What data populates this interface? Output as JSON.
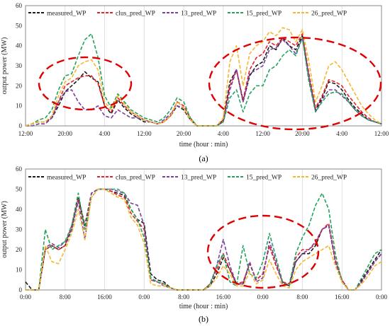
{
  "colors": {
    "measured_WP": "#1a1a1a",
    "clus_pred_WP": "#e8202a",
    "13_pred_WP": "#7b3fa0",
    "15_pred_WP": "#23a35a",
    "26_pred_WP": "#f5b82e",
    "ellipse": "#e00000"
  },
  "chart_data": [
    {
      "type": "line",
      "panel_label": "(a)",
      "xlabel": "time (hour : min)",
      "ylabel": "output power (MW)",
      "ylim": [
        0,
        60
      ],
      "yticks": [
        "0",
        "10",
        "20",
        "30",
        "40",
        "50",
        "60"
      ],
      "xticks": [
        "12:00",
        "20:00",
        "4:00",
        "12:00",
        "20:00",
        "4:00",
        "12:00",
        "20:00",
        "4:00",
        "12:00"
      ],
      "grid": "vertical gridlines",
      "legend": "top, inside",
      "x": [
        0,
        2,
        4,
        6,
        8,
        10,
        12,
        14,
        16,
        18,
        20,
        22,
        24,
        26,
        28,
        30,
        32,
        34,
        36,
        38,
        40,
        42,
        44,
        46,
        48,
        50,
        52,
        54,
        56,
        58,
        60,
        62,
        64,
        66,
        68,
        70,
        72,
        74,
        76,
        78,
        80,
        82,
        84,
        86,
        88,
        90,
        92,
        94,
        96,
        98,
        100,
        102,
        104,
        106,
        108
      ],
      "series": [
        {
          "name": "measured_WP",
          "values": [
            0,
            1,
            2,
            2,
            4,
            10,
            17,
            20,
            23,
            27,
            24,
            22,
            10,
            6,
            13,
            9,
            6,
            4,
            2,
            2,
            1,
            2,
            5,
            10,
            8,
            3,
            0,
            0,
            0,
            0,
            3,
            22,
            28,
            12,
            25,
            30,
            32,
            40,
            38,
            44,
            40,
            38,
            45,
            24,
            8,
            14,
            22,
            21,
            18,
            13,
            9,
            6,
            3,
            2,
            1
          ]
        },
        {
          "name": "clus_pred_WP",
          "values": [
            0,
            1,
            2,
            2,
            5,
            12,
            20,
            22,
            24,
            25,
            25,
            21,
            10,
            7,
            14,
            10,
            7,
            5,
            3,
            2,
            1,
            2,
            5,
            12,
            10,
            4,
            0,
            0,
            0,
            0,
            3,
            20,
            28,
            13,
            28,
            34,
            36,
            42,
            40,
            44,
            42,
            40,
            46,
            26,
            9,
            15,
            23,
            22,
            20,
            15,
            11,
            7,
            4,
            2,
            1
          ]
        },
        {
          "name": "13_pred_WP",
          "values": [
            0,
            0,
            1,
            1,
            4,
            12,
            17,
            18,
            12,
            8,
            8,
            10,
            5,
            4,
            8,
            6,
            4,
            4,
            3,
            2,
            1,
            3,
            6,
            10,
            9,
            3,
            0,
            0,
            0,
            0,
            2,
            18,
            28,
            12,
            26,
            28,
            30,
            38,
            39,
            43,
            40,
            36,
            44,
            24,
            7,
            13,
            18,
            18,
            15,
            12,
            8,
            5,
            3,
            2,
            1
          ]
        },
        {
          "name": "15_pred_WP",
          "values": [
            0,
            1,
            3,
            4,
            8,
            18,
            25,
            26,
            35,
            43,
            46,
            34,
            15,
            9,
            16,
            12,
            8,
            6,
            4,
            3,
            2,
            4,
            8,
            14,
            12,
            4,
            0,
            0,
            0,
            0,
            2,
            14,
            18,
            7,
            16,
            20,
            20,
            28,
            30,
            35,
            38,
            35,
            44,
            22,
            7,
            12,
            16,
            17,
            16,
            12,
            8,
            5,
            3,
            2,
            1
          ]
        },
        {
          "name": "26_pred_WP",
          "values": [
            0,
            1,
            2,
            2,
            5,
            15,
            22,
            24,
            30,
            32,
            33,
            28,
            12,
            8,
            15,
            11,
            7,
            5,
            3,
            2,
            1,
            2,
            5,
            12,
            9,
            3,
            0,
            0,
            0,
            0,
            4,
            32,
            40,
            20,
            36,
            40,
            42,
            47,
            45,
            49,
            48,
            42,
            48,
            32,
            12,
            20,
            30,
            32,
            28,
            22,
            16,
            10,
            6,
            3,
            1
          ]
        }
      ],
      "annotations": [
        "dashed red ellipse around first day peak",
        "dashed red ellipse around second/third day peaks"
      ]
    },
    {
      "type": "line",
      "panel_label": "(b)",
      "xlabel": "time (hour : min)",
      "ylabel": "output power (MW)",
      "ylim": [
        0,
        60
      ],
      "yticks": [
        "0",
        "10",
        "20",
        "30",
        "40",
        "50",
        "60"
      ],
      "xticks": [
        "0:00",
        "8:00",
        "16:00",
        "0:00",
        "8:00",
        "16:00",
        "0:00",
        "8:00",
        "16:00",
        "0:00"
      ],
      "grid": "vertical gridlines",
      "legend": "top, inside",
      "x": [
        0,
        2,
        4,
        6,
        8,
        10,
        12,
        14,
        16,
        18,
        20,
        22,
        24,
        26,
        28,
        30,
        32,
        34,
        36,
        38,
        40,
        42,
        44,
        46,
        48,
        50,
        52,
        54,
        56,
        58,
        60,
        62,
        64,
        66,
        68,
        70,
        72,
        74,
        76,
        78,
        80,
        82,
        84,
        86,
        88,
        90,
        92,
        94,
        96,
        98,
        100,
        102,
        104,
        106,
        108
      ],
      "series": [
        {
          "name": "measured_WP",
          "values": [
            4,
            0,
            0,
            20,
            22,
            20,
            22,
            30,
            46,
            32,
            48,
            50,
            50,
            49,
            48,
            47,
            40,
            35,
            33,
            8,
            5,
            4,
            1,
            0,
            0,
            0,
            0,
            0,
            2,
            8,
            16,
            10,
            3,
            3,
            13,
            5,
            8,
            22,
            12,
            4,
            2,
            14,
            18,
            18,
            22,
            30,
            32,
            14,
            5,
            0,
            0,
            5,
            10,
            15,
            20
          ]
        },
        {
          "name": "clus_pred_WP",
          "values": [
            0,
            0,
            0,
            20,
            22,
            20,
            22,
            32,
            45,
            30,
            48,
            50,
            50,
            49,
            47,
            46,
            38,
            34,
            30,
            5,
            4,
            3,
            1,
            0,
            0,
            0,
            0,
            0,
            3,
            10,
            18,
            10,
            3,
            4,
            13,
            5,
            8,
            22,
            12,
            4,
            3,
            16,
            20,
            20,
            23,
            30,
            33,
            15,
            5,
            0,
            0,
            4,
            9,
            14,
            18
          ]
        },
        {
          "name": "13_pred_WP",
          "values": [
            0,
            0,
            0,
            21,
            23,
            21,
            24,
            30,
            44,
            25,
            48,
            50,
            50,
            50,
            49,
            48,
            43,
            42,
            32,
            5,
            4,
            2,
            1,
            0,
            0,
            0,
            0,
            0,
            2,
            12,
            25,
            12,
            3,
            3,
            14,
            4,
            6,
            24,
            14,
            3,
            2,
            14,
            18,
            20,
            24,
            30,
            32,
            14,
            4,
            0,
            0,
            4,
            9,
            14,
            18
          ]
        },
        {
          "name": "15_pred_WP",
          "values": [
            0,
            0,
            0,
            30,
            20,
            22,
            24,
            32,
            48,
            30,
            46,
            50,
            50,
            50,
            50,
            48,
            40,
            35,
            26,
            6,
            4,
            3,
            1,
            0,
            0,
            0,
            0,
            0,
            3,
            12,
            18,
            4,
            2,
            22,
            8,
            6,
            14,
            28,
            16,
            4,
            2,
            18,
            26,
            32,
            42,
            48,
            40,
            18,
            4,
            0,
            0,
            6,
            12,
            18,
            20
          ]
        },
        {
          "name": "26_pred_WP",
          "values": [
            0,
            0,
            0,
            22,
            14,
            13,
            20,
            28,
            40,
            25,
            46,
            50,
            50,
            48,
            46,
            45,
            36,
            32,
            23,
            3,
            2,
            2,
            1,
            0,
            0,
            0,
            0,
            0,
            2,
            6,
            12,
            8,
            2,
            2,
            9,
            3,
            5,
            15,
            8,
            2,
            1,
            10,
            14,
            16,
            18,
            20,
            22,
            12,
            4,
            0,
            0,
            3,
            7,
            12,
            14
          ]
        }
      ],
      "annotations": [
        "dashed red ellipse around second-day peaks"
      ]
    }
  ]
}
